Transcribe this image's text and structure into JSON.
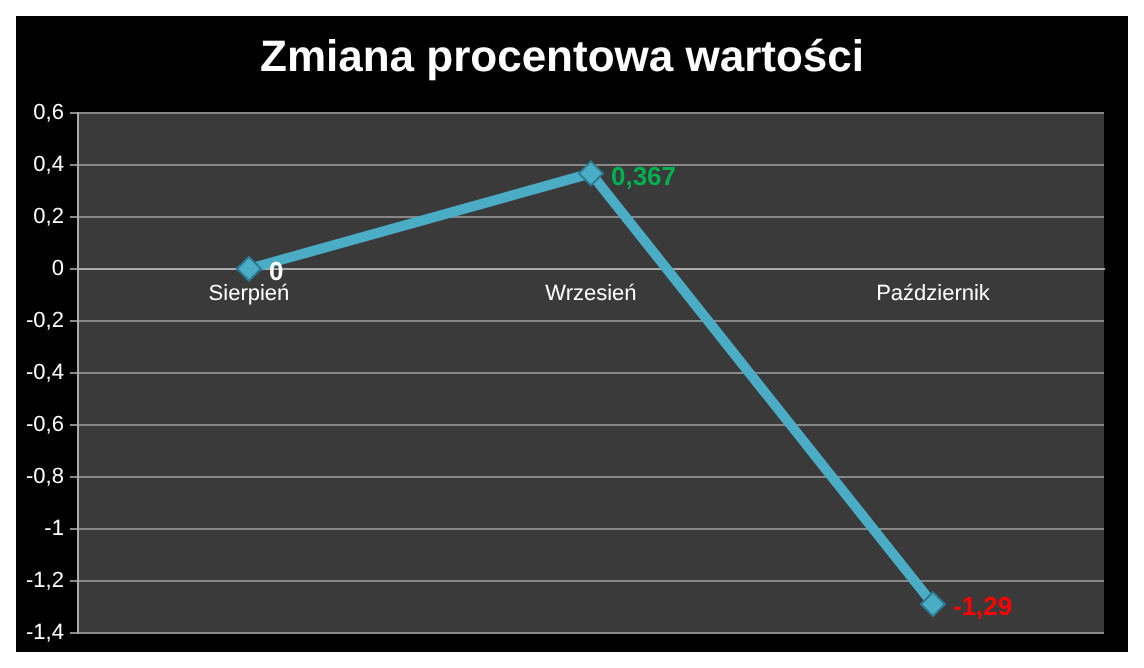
{
  "chart_data": {
    "type": "line",
    "title": "Zmiana procentowa wartości",
    "categories": [
      "Sierpień",
      "Wrzesień",
      "Październik"
    ],
    "series": [
      {
        "color": "#4bacc6",
        "values": [
          0,
          0.367,
          -1.29
        ]
      }
    ],
    "value_labels": [
      "0",
      "0,367",
      "-1,29"
    ],
    "ylim": [
      -1.4,
      0.6
    ],
    "yticks": [
      {
        "value": 0.6,
        "label": "0,6"
      },
      {
        "value": 0.4,
        "label": "0,4"
      },
      {
        "value": 0.2,
        "label": "0,2"
      },
      {
        "value": 0,
        "label": "0"
      },
      {
        "value": -0.2,
        "label": "-0,2"
      },
      {
        "value": -0.4,
        "label": "-0,4"
      },
      {
        "value": -0.6,
        "label": "-0,6"
      },
      {
        "value": -0.8,
        "label": "-0,8"
      },
      {
        "value": -1,
        "label": "-1"
      },
      {
        "value": -1.2,
        "label": "-1,2"
      },
      {
        "value": -1.4,
        "label": "-1,4"
      }
    ],
    "grid": "y",
    "legend": false,
    "marker": "diamond",
    "line_style": "solid"
  }
}
